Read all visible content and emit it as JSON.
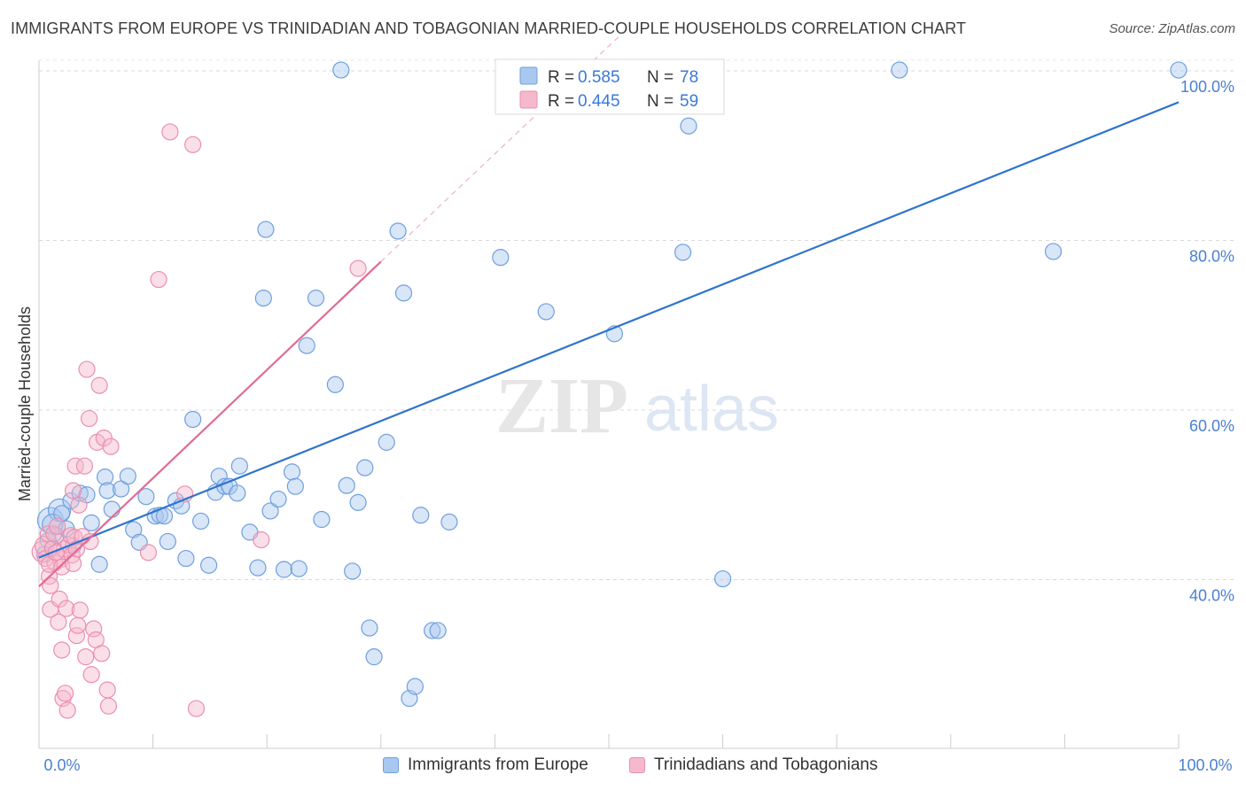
{
  "header": {
    "title": "IMMIGRANTS FROM EUROPE VS TRINIDADIAN AND TOBAGONIAN MARRIED-COUPLE HOUSEHOLDS CORRELATION CHART",
    "source": "Source: ZipAtlas.com"
  },
  "watermark": {
    "zip": "ZIP",
    "atlas": "atlas"
  },
  "colors": {
    "blue_fill": "#a9c8f0",
    "blue_stroke": "#6f9fde",
    "blue_line": "#2f74cc",
    "pink_fill": "#f6b9cc",
    "pink_stroke": "#ea8fae",
    "pink_line": "#e06b95",
    "grid": "#d9d9d9",
    "axis_label": "#4a7fd0"
  },
  "legend": {
    "rows": [
      {
        "r_label": "R = ",
        "r_value": "0.585",
        "n_label": "N = ",
        "n_value": "78"
      },
      {
        "r_label": "R = ",
        "r_value": "0.445",
        "n_label": "N = ",
        "n_value": "59"
      }
    ]
  },
  "bottom_legend": {
    "series_1": "Immigrants from Europe",
    "series_2": "Trinidadians and Tobagonians"
  },
  "chart_data": {
    "type": "scatter",
    "title": "IMMIGRANTS FROM EUROPE VS TRINIDADIAN AND TOBAGONIAN MARRIED-COUPLE HOUSEHOLDS CORRELATION CHART",
    "xlabel": "",
    "ylabel": "Married-couple Households",
    "xlim": [
      0,
      100
    ],
    "ylim": [
      20,
      102
    ],
    "x_tick_labels": [
      "0.0%",
      "100.0%"
    ],
    "y_ticks": [
      {
        "value": 40,
        "label": "40.0%"
      },
      {
        "value": 60,
        "label": "60.0%"
      },
      {
        "value": 80,
        "label": "80.0%"
      },
      {
        "value": 100,
        "label": "100.0%"
      }
    ],
    "grid": true,
    "series": [
      {
        "name": "Immigrants from Europe",
        "r": 0.585,
        "n": 78,
        "trend": {
          "x": [
            0,
            100
          ],
          "y": [
            42.6,
            96.3
          ]
        },
        "points": [
          [
            1.0,
            47.0,
            1.6
          ],
          [
            1.8,
            48.2,
            1.4
          ],
          [
            1.2,
            46.5,
            1.3
          ],
          [
            2.0,
            47.8,
            1.0
          ],
          [
            1.5,
            45.2,
            1.0
          ],
          [
            0.8,
            44.6,
            1.0
          ],
          [
            2.4,
            46.0,
            1.0
          ],
          [
            2.8,
            49.3,
            1.0
          ],
          [
            3.6,
            50.2,
            1.0
          ],
          [
            4.2,
            50.0,
            1.0
          ],
          [
            4.6,
            46.7,
            1.0
          ],
          [
            5.3,
            41.8,
            1.0
          ],
          [
            5.8,
            52.1,
            1.0
          ],
          [
            6.0,
            50.5,
            1.0
          ],
          [
            6.4,
            48.3,
            1.0
          ],
          [
            7.2,
            50.7,
            1.0
          ],
          [
            7.8,
            52.2,
            1.0
          ],
          [
            8.3,
            45.9,
            1.0
          ],
          [
            8.8,
            44.4,
            1.0
          ],
          [
            9.4,
            49.8,
            1.0
          ],
          [
            10.2,
            47.5,
            1.0
          ],
          [
            10.6,
            47.6,
            1.0
          ],
          [
            11.0,
            47.5,
            1.0
          ],
          [
            11.3,
            44.5,
            1.0
          ],
          [
            12.0,
            49.3,
            1.0
          ],
          [
            12.5,
            48.7,
            1.0
          ],
          [
            12.9,
            42.5,
            1.0
          ],
          [
            13.5,
            58.9,
            1.0
          ],
          [
            14.2,
            46.9,
            1.0
          ],
          [
            14.9,
            41.7,
            1.0
          ],
          [
            15.5,
            50.3,
            1.0
          ],
          [
            15.8,
            52.2,
            1.0
          ],
          [
            16.3,
            51.0,
            1.0
          ],
          [
            16.7,
            51.0,
            1.0
          ],
          [
            17.4,
            50.2,
            1.0
          ],
          [
            17.6,
            53.4,
            1.0
          ],
          [
            18.5,
            45.6,
            1.0
          ],
          [
            19.2,
            41.4,
            1.0
          ],
          [
            19.7,
            73.2,
            1.0
          ],
          [
            19.9,
            81.3,
            1.0
          ],
          [
            20.3,
            48.1,
            1.0
          ],
          [
            21.0,
            49.5,
            1.0
          ],
          [
            21.5,
            41.2,
            1.0
          ],
          [
            22.2,
            52.7,
            1.0
          ],
          [
            22.5,
            51.0,
            1.0
          ],
          [
            22.8,
            41.3,
            1.0
          ],
          [
            23.5,
            67.6,
            1.0
          ],
          [
            24.3,
            73.2,
            1.0
          ],
          [
            24.8,
            47.1,
            1.0
          ],
          [
            26.0,
            63.0,
            1.0
          ],
          [
            26.5,
            100.1,
            1.0
          ],
          [
            27.0,
            51.1,
            1.0
          ],
          [
            27.5,
            41.0,
            1.0
          ],
          [
            28.0,
            49.1,
            1.0
          ],
          [
            28.6,
            53.2,
            1.0
          ],
          [
            29.0,
            34.3,
            1.0
          ],
          [
            29.4,
            30.9,
            1.0
          ],
          [
            30.5,
            56.2,
            1.0
          ],
          [
            31.5,
            81.1,
            1.0
          ],
          [
            32.0,
            73.8,
            1.0
          ],
          [
            32.5,
            26.0,
            1.0
          ],
          [
            33.0,
            27.4,
            1.0
          ],
          [
            33.5,
            47.6,
            1.0
          ],
          [
            34.5,
            34.0,
            1.0
          ],
          [
            35.0,
            34.0,
            1.0
          ],
          [
            36.0,
            46.8,
            1.0
          ],
          [
            40.5,
            78.0,
            1.0
          ],
          [
            44.5,
            71.6,
            1.0
          ],
          [
            47.5,
            100.1,
            1.0
          ],
          [
            50.5,
            69.0,
            1.0
          ],
          [
            56.5,
            78.6,
            1.0
          ],
          [
            57.0,
            93.5,
            1.0
          ],
          [
            60.0,
            40.1,
            1.0
          ],
          [
            75.5,
            100.1,
            1.0
          ],
          [
            89.0,
            78.7,
            1.0
          ],
          [
            100.0,
            100.1,
            1.0
          ],
          [
            0.5,
            43.0,
            1.0
          ],
          [
            3.0,
            44.0,
            1.0
          ]
        ]
      },
      {
        "name": "Trinidadians and Tobagonians",
        "r": 0.445,
        "n": 59,
        "trend": {
          "x": [
            0,
            30
          ],
          "y": [
            39.2,
            77.5
          ]
        },
        "trend_extension": {
          "x": [
            30,
            51
          ],
          "y": [
            77.5,
            104.2
          ]
        },
        "points": [
          [
            0.3,
            43.3,
            1.3
          ],
          [
            0.5,
            44.0,
            1.2
          ],
          [
            0.6,
            42.5,
            1.0
          ],
          [
            0.8,
            45.4,
            1.0
          ],
          [
            0.9,
            40.4,
            1.0
          ],
          [
            1.0,
            39.3,
            1.0
          ],
          [
            1.0,
            36.5,
            1.0
          ],
          [
            1.2,
            43.7,
            1.0
          ],
          [
            1.3,
            45.4,
            1.0
          ],
          [
            1.4,
            42.0,
            1.0
          ],
          [
            1.6,
            46.3,
            1.0
          ],
          [
            1.7,
            35.0,
            1.0
          ],
          [
            1.8,
            37.7,
            1.0
          ],
          [
            1.9,
            42.4,
            1.0
          ],
          [
            2.0,
            31.7,
            1.0
          ],
          [
            2.1,
            26.0,
            1.0
          ],
          [
            2.2,
            43.6,
            1.0
          ],
          [
            2.3,
            26.6,
            1.0
          ],
          [
            2.4,
            36.6,
            1.0
          ],
          [
            2.5,
            24.6,
            1.0
          ],
          [
            2.6,
            44.1,
            1.0
          ],
          [
            2.8,
            45.2,
            1.0
          ],
          [
            2.9,
            42.9,
            1.0
          ],
          [
            3.0,
            50.5,
            1.0
          ],
          [
            3.1,
            45.0,
            1.0
          ],
          [
            3.2,
            53.4,
            1.0
          ],
          [
            3.3,
            43.6,
            1.0
          ],
          [
            3.3,
            33.4,
            1.0
          ],
          [
            3.4,
            34.6,
            1.0
          ],
          [
            3.5,
            48.8,
            1.0
          ],
          [
            3.6,
            36.4,
            1.0
          ],
          [
            3.8,
            45.1,
            1.0
          ],
          [
            4.0,
            53.4,
            1.0
          ],
          [
            4.1,
            30.9,
            1.0
          ],
          [
            4.2,
            64.8,
            1.0
          ],
          [
            4.4,
            59.0,
            1.0
          ],
          [
            4.6,
            28.8,
            1.0
          ],
          [
            4.8,
            34.2,
            1.0
          ],
          [
            5.0,
            32.9,
            1.0
          ],
          [
            5.1,
            56.2,
            1.0
          ],
          [
            5.3,
            62.9,
            1.0
          ],
          [
            5.5,
            31.3,
            1.0
          ],
          [
            5.7,
            56.7,
            1.0
          ],
          [
            6.0,
            27.0,
            1.0
          ],
          [
            6.1,
            25.1,
            1.0
          ],
          [
            6.3,
            55.7,
            1.0
          ],
          [
            9.6,
            43.2,
            1.0
          ],
          [
            10.5,
            75.4,
            1.0
          ],
          [
            11.5,
            92.8,
            1.0
          ],
          [
            12.8,
            50.1,
            1.0
          ],
          [
            13.5,
            91.3,
            1.0
          ],
          [
            13.8,
            24.8,
            1.0
          ],
          [
            19.5,
            44.7,
            1.0
          ],
          [
            28.0,
            76.7,
            1.0
          ],
          [
            0.9,
            41.8,
            1.0
          ],
          [
            1.5,
            43.2,
            1.0
          ],
          [
            2.0,
            41.5,
            1.0
          ],
          [
            3.0,
            41.9,
            1.0
          ],
          [
            4.5,
            44.5,
            1.0
          ]
        ]
      }
    ]
  }
}
